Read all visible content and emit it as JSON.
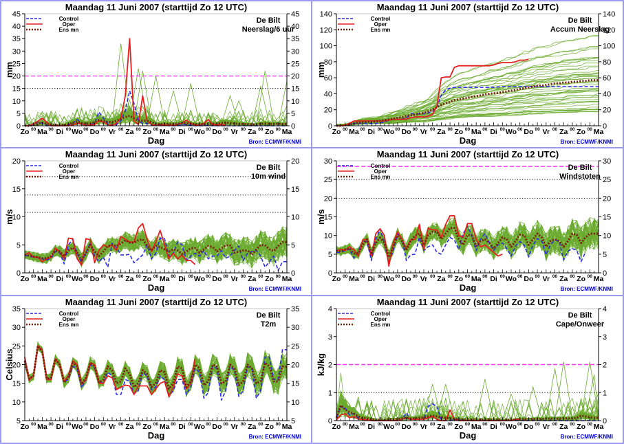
{
  "page": {
    "title": "Maandag   11 Juni      2007  (starttijd  Zo 12 UTC)",
    "location": "De Bilt",
    "source": "Bron: ECMWF/KNMI",
    "xlabel": "Dag",
    "legend": [
      {
        "label": "Control",
        "color": "#2a2ae6",
        "style": "dashed"
      },
      {
        "label": "Oper",
        "color": "#e61e1e",
        "style": "solid"
      },
      {
        "label": "Ens mn",
        "color": "#7a1e0a",
        "style": "dotted"
      }
    ],
    "colors": {
      "members": "#6aaa2e",
      "control": "#2a2ae6",
      "oper": "#e61e1e",
      "ensmean": "#7a1e0a",
      "threshold_magenta": "#ff33ff",
      "threshold_black": "#000000",
      "border": "#9a9af0"
    },
    "day_labels": [
      "Zo",
      "Ma",
      "Di",
      "Wo",
      "Do",
      "Vr",
      "Za",
      "Zo",
      "Ma",
      "Di",
      "Wo",
      "Do",
      "Vr",
      "Za",
      "Zo",
      "Ma"
    ],
    "midday_marker": "00"
  },
  "chart_data": [
    {
      "id": "neerslag",
      "type": "line",
      "title": "Maandag   11 Juni      2007  (starttijd  Zo 12 UTC)",
      "subtitle": "Neerslag/6 uur",
      "location": "De Bilt",
      "ylabel": "mm",
      "xlabel": "Dag",
      "ylim": [
        0,
        45
      ],
      "yticks": [
        0,
        5,
        10,
        15,
        20,
        25,
        30,
        35,
        40,
        45
      ],
      "thresholds": [
        {
          "value": 20,
          "color": "magenta",
          "style": "dashed"
        },
        {
          "value": 15,
          "color": "black",
          "style": "dotted"
        }
      ],
      "x_unit": "6-hourly steps from Zo 12 UTC",
      "member_spread": 0.9,
      "member_count": 50,
      "control": [
        0,
        0,
        0.5,
        1.5,
        1,
        0,
        0,
        0,
        0,
        0,
        0.5,
        1,
        2.5,
        1,
        0,
        0.5,
        1,
        5.5,
        3,
        1,
        0,
        0.5,
        2,
        6,
        14,
        9,
        2,
        1,
        1,
        0.5,
        0,
        0.3,
        0.2,
        0,
        0,
        0,
        0.3,
        0.5,
        0.2,
        0,
        0,
        0,
        0.2,
        0,
        0,
        0,
        0,
        0,
        0,
        0,
        0,
        0,
        0,
        0,
        0,
        0,
        0,
        0,
        0,
        0,
        0
      ],
      "oper": [
        0,
        0,
        0.8,
        1.8,
        3,
        1.5,
        0,
        0,
        0,
        0,
        0,
        0.3,
        1,
        0.8,
        0,
        0.3,
        0.5,
        2,
        1.5,
        0.5,
        0.2,
        1,
        3,
        12,
        35,
        2,
        0.5,
        12,
        2,
        0.5,
        0.2,
        0.5,
        0.3,
        0.2,
        0.2,
        0.5,
        1,
        2.3,
        1,
        0.3,
        0.2,
        1,
        2.5,
        0.5,
        0.3,
        0.5,
        0.3
      ],
      "ens_mean": [
        0,
        0,
        0.3,
        0.8,
        1.2,
        0.8,
        0.4,
        0.3,
        0.3,
        0.4,
        0.6,
        1.2,
        1.8,
        1.2,
        0.8,
        1,
        1.5,
        2.3,
        2,
        1.5,
        1.5,
        2,
        2.8,
        3.5,
        4,
        3,
        2,
        2.1,
        2,
        1.5,
        0.8,
        0.6,
        0.8,
        0.8,
        0.7,
        0.8,
        1,
        1,
        0.8,
        0.6,
        0.6,
        0.6,
        0.8,
        0.8,
        0.8,
        1.2,
        1.3,
        1.1,
        0.9,
        0.8,
        0.7,
        0.6,
        0.5,
        0.6,
        0.8,
        0.9,
        0.7,
        0.8,
        0.8,
        0.7,
        0.7
      ],
      "member_peaks": [
        [
          22,
          33
        ],
        [
          26,
          23
        ],
        [
          27,
          22
        ],
        [
          30,
          20
        ],
        [
          34,
          14
        ],
        [
          38,
          17
        ],
        [
          47,
          12
        ],
        [
          49,
          10
        ],
        [
          54,
          16
        ],
        [
          55,
          22
        ],
        [
          60,
          18
        ],
        [
          60,
          8
        ]
      ]
    },
    {
      "id": "accum",
      "type": "line",
      "title": "Maandag   11 Juni      2007  (starttijd  Zo 12 UTC)",
      "subtitle": "Accum Neerslag",
      "location": "De Bilt",
      "ylabel": "mm",
      "xlabel": "Dag",
      "ylim": [
        0,
        140
      ],
      "yticks": [
        0,
        20,
        40,
        60,
        80,
        100,
        120,
        140
      ],
      "thresholds": [],
      "member_spread": 20,
      "member_count": 50,
      "member_max": 112,
      "member_min": 16,
      "control": [
        0,
        0,
        0.5,
        2,
        3,
        3,
        3,
        3,
        3,
        3,
        3.5,
        4.5,
        7,
        8,
        8,
        8.5,
        9.5,
        15,
        15,
        15,
        15,
        16,
        18,
        24,
        38,
        45,
        47,
        48,
        48,
        48,
        48,
        48,
        48,
        48,
        48,
        48,
        48,
        48.5,
        49,
        49,
        49,
        49,
        49,
        49,
        49,
        49,
        49,
        49,
        49,
        49,
        49,
        49,
        49,
        49,
        49,
        49,
        49,
        49,
        49,
        49,
        49
      ],
      "oper": [
        0,
        0,
        1,
        3,
        6,
        6,
        6,
        6,
        6,
        6,
        6,
        6,
        7,
        8,
        8,
        8,
        8.5,
        10,
        11,
        11,
        11,
        12,
        14,
        25,
        60,
        61,
        61,
        73,
        75,
        75,
        75,
        75,
        75,
        75,
        75,
        75,
        76,
        78,
        79,
        79,
        79,
        80,
        82,
        82,
        83
      ],
      "ens_mean": [
        0,
        0,
        0.5,
        1.5,
        3,
        4,
        4.5,
        5,
        5,
        5.5,
        6,
        7,
        8,
        9,
        10,
        11,
        12,
        13,
        14,
        15,
        16,
        18,
        20,
        23,
        26,
        28,
        30,
        32,
        33,
        34,
        35,
        36,
        37,
        38,
        39,
        40,
        40.5,
        41,
        42,
        43,
        44,
        45,
        46,
        47,
        48,
        49,
        50,
        50,
        51,
        52,
        53,
        53,
        54,
        54,
        55,
        55,
        56,
        56,
        57,
        57,
        57
      ]
    },
    {
      "id": "wind10m",
      "type": "line",
      "title": "Maandag   11 Juni      2007  (starttijd  Zo 12 UTC)",
      "subtitle": "10m wind",
      "location": "De Bilt",
      "ylabel": "m/s",
      "xlabel": "Dag",
      "ylim": [
        0,
        20
      ],
      "yticks": [
        0,
        5,
        10,
        15,
        20
      ],
      "thresholds": [
        {
          "value": 10.8,
          "color": "black",
          "style": "dotted"
        },
        {
          "value": 13.9,
          "color": "black",
          "style": "dotted"
        },
        {
          "value": 17.2,
          "color": "black",
          "style": "dotted"
        }
      ],
      "member_spread": 2.0,
      "member_count": 50,
      "control": [
        3.1,
        3,
        2.8,
        2.7,
        2.5,
        2.3,
        2.6,
        3.8,
        3.6,
        1.6,
        5,
        6,
        3.5,
        1.8,
        3.5,
        5.5,
        3,
        2,
        2.8,
        1,
        5.3,
        4.5,
        3.2,
        3.2,
        3.3,
        1.8,
        2.5,
        3.2,
        5,
        2.5,
        3.5,
        6.2,
        6.1,
        3,
        3.5,
        5.5,
        5,
        2.3,
        3,
        3.5,
        3,
        4,
        2.5,
        3,
        3,
        4,
        2.6,
        3,
        4,
        4.8,
        2.2,
        3.5,
        3.8,
        4,
        3,
        1,
        2,
        3,
        0.4,
        2,
        2
      ],
      "oper": [
        3.2,
        3.6,
        2.8,
        2.8,
        2,
        2.5,
        2.8,
        4.4,
        3.8,
        2.5,
        6.2,
        6.1,
        2.5,
        1.4,
        6.1,
        5.9,
        1.8,
        4,
        5,
        4.6,
        5,
        4,
        6.5,
        6,
        5.5,
        5.5,
        8,
        8.8,
        6,
        3.8,
        5.5,
        7.6,
        5,
        2.5,
        3.5,
        2.5,
        3.2,
        2.2,
        2.2,
        1.5
      ],
      "ens_mean": [
        3.2,
        3.1,
        2.9,
        2.8,
        2.6,
        2.6,
        3,
        4,
        3.8,
        3,
        4,
        4.5,
        3.6,
        2.3,
        3.5,
        5,
        3.8,
        3,
        3.8,
        4.8,
        5,
        4.8,
        5.2,
        5.8,
        5.4,
        5.4,
        5.8,
        6,
        4.8,
        4,
        4.8,
        4.6,
        4.2,
        3.8,
        4.2,
        4,
        3.4,
        3.8,
        4.4,
        4.4,
        3.6,
        4.2,
        4.8,
        4.6,
        3.8,
        4.4,
        4.9,
        4.9,
        3.6,
        3.8,
        4,
        4,
        3.2,
        4.2,
        5,
        4.9,
        4.2,
        3.9,
        4.8,
        5.5,
        5.5
      ]
    },
    {
      "id": "windstoten",
      "type": "line",
      "title": "Maandag   11 Juni      2007  (starttijd  Zo 12 UTC)",
      "subtitle": "Windstoten",
      "location": "De Bilt",
      "ylabel": "m/s",
      "xlabel": "Dag",
      "ylim": [
        0,
        30
      ],
      "yticks": [
        0,
        5,
        10,
        15,
        20,
        25,
        30
      ],
      "thresholds": [
        {
          "value": 28.5,
          "color": "magenta",
          "style": "dashed"
        },
        {
          "value": 25,
          "color": "black",
          "style": "dotted"
        },
        {
          "value": 20,
          "color": "black",
          "style": "dotted"
        }
      ],
      "member_spread": 3.2,
      "member_count": 50,
      "control": [
        5.5,
        5.4,
        6,
        6.4,
        4,
        5.8,
        8.5,
        8.4,
        3.3,
        9,
        11.8,
        8,
        2.6,
        6,
        10.5,
        9,
        3.3,
        4.8,
        5,
        9.5,
        6,
        7,
        7.5,
        5.5,
        5,
        7.5,
        9.5,
        8.8,
        6.2,
        10.5,
        12.5,
        10,
        6,
        9,
        10.5,
        8,
        6,
        7.5,
        8,
        6.5,
        4.5,
        7.2,
        8.4,
        7.4,
        4.3,
        7.5,
        9.2,
        8.5,
        4.8,
        7.6,
        8.8,
        8.5,
        3.5,
        5.8,
        6.5,
        6,
        3,
        5.5
      ],
      "oper": [
        5.8,
        6.3,
        6,
        7,
        6.2,
        4.5,
        8.8,
        9,
        4.5,
        10.5,
        11.8,
        10,
        1.8,
        8,
        11,
        9,
        6.5,
        8.8,
        9,
        13,
        6.3,
        12,
        11.5,
        11.5,
        9.5,
        13,
        15.3,
        15.3,
        10,
        9.5,
        13.2,
        13.2,
        9,
        7,
        7.5,
        6.5,
        5.5,
        4.5,
        5
      ],
      "ens_mean": [
        6,
        5.7,
        6.3,
        6.5,
        5.2,
        5.2,
        7.5,
        9,
        5,
        8,
        9.4,
        8,
        4.2,
        7,
        10,
        8.5,
        6,
        8.5,
        10,
        10.5,
        7.5,
        10,
        11,
        11,
        9,
        10.5,
        12,
        12,
        9,
        7.5,
        10.2,
        10,
        7.2,
        8.5,
        9,
        8,
        6.5,
        8,
        9.5,
        9,
        7,
        8.5,
        10.2,
        10,
        7.5,
        9,
        10.5,
        9.5,
        7,
        8.5,
        9,
        8.5,
        7,
        8.5,
        10.5,
        10.2,
        8,
        9.5,
        10.5,
        10.5,
        10.5
      ]
    },
    {
      "id": "t2m",
      "type": "line",
      "title": "Maandag   11 Juni      2007  (starttijd  Zo 12 UTC)",
      "subtitle": "T2m",
      "location": "De Bilt",
      "ylabel": "Celsius",
      "xlabel": "Dag",
      "ylim": [
        5,
        35
      ],
      "yticks": [
        5,
        10,
        15,
        20,
        25,
        30,
        35
      ],
      "thresholds": [],
      "member_spread": 2.6,
      "member_count": 50,
      "control": [
        21,
        16,
        17,
        24.5,
        24,
        16.5,
        16,
        21.5,
        20,
        15.5,
        16,
        19.5,
        19,
        13.8,
        16,
        20,
        19,
        15.5,
        15,
        18,
        17,
        12,
        12,
        16,
        15.5,
        12.2,
        13,
        18,
        17,
        13.2,
        14,
        17,
        16,
        11.8,
        13,
        16,
        16,
        12,
        14,
        19,
        18,
        11,
        12.5,
        19.5,
        19,
        10.5,
        13,
        19.5,
        18.5,
        11.5,
        13,
        19.5,
        19,
        11,
        13,
        22,
        22,
        16,
        16,
        24,
        24
      ],
      "oper": [
        22,
        15.8,
        17,
        25,
        24,
        16,
        16,
        21.5,
        20,
        15.5,
        17,
        21,
        20,
        14.8,
        16,
        20.5,
        20,
        15,
        15,
        17,
        16.5,
        13.3,
        14,
        14.5,
        14.3,
        12,
        14.3,
        14.3,
        14.3,
        12,
        13.5,
        15,
        15.5,
        11.4,
        14,
        17.5,
        17,
        13.5,
        15,
        21.5
      ],
      "ens_mean": [
        21,
        16.2,
        17,
        25,
        23.5,
        16.2,
        16.5,
        21.5,
        20,
        15.2,
        16.5,
        20.5,
        19.5,
        14.8,
        16.5,
        20.5,
        19.5,
        15.2,
        16,
        19.5,
        18.5,
        15,
        15.5,
        19,
        17.5,
        14,
        15,
        18.5,
        17.5,
        14,
        15,
        18.5,
        18,
        13.5,
        15,
        19.5,
        19,
        14,
        15.5,
        20,
        19,
        14.5,
        15.5,
        20,
        19.5,
        15,
        15.5,
        20,
        19,
        14.5,
        15.5,
        20,
        19,
        15,
        15.5,
        20.5,
        19.5,
        15.5,
        15.5,
        19.5,
        19.5
      ]
    },
    {
      "id": "cape",
      "type": "line",
      "title": "Maandag   11 Juni      2007  (starttijd  Zo 12 UTC)",
      "subtitle": "Cape/Onweer",
      "location": "De Bilt",
      "ylabel": "kJ/kg",
      "xlabel": "Dag",
      "ylim": [
        0,
        4
      ],
      "yticks": [
        0,
        1,
        2,
        3,
        4
      ],
      "thresholds": [
        {
          "value": 2,
          "color": "magenta",
          "style": "dashed"
        },
        {
          "value": 1,
          "color": "black",
          "style": "dotted"
        }
      ],
      "member_spread": 0.12,
      "member_count": 50,
      "control": [
        0.1,
        0.5,
        0.45,
        0.2,
        0.25,
        0.1,
        0.05,
        0.02,
        0,
        0,
        0,
        0,
        0.02,
        0,
        0,
        0.05,
        0.28,
        0.05,
        0.05,
        0.05,
        0.05,
        0.5,
        0.6,
        0.5,
        0.05,
        0,
        0,
        0.05,
        0.05,
        0,
        0,
        0,
        0,
        0,
        0,
        0,
        0,
        0,
        0,
        0,
        0,
        0,
        0,
        0,
        0,
        0,
        0,
        0,
        0,
        0,
        0,
        0,
        0,
        0,
        0,
        0,
        0,
        0,
        0,
        0,
        0
      ],
      "oper": [
        0.02,
        0.2,
        0.25,
        0.1,
        0.15,
        0.05,
        0.05,
        0.02,
        0,
        0,
        0,
        0,
        0,
        0,
        0,
        0.05,
        0.1,
        0.05,
        0.05,
        0.05,
        0.05,
        0.1,
        0.15,
        0.05,
        0,
        0,
        0.38,
        0.05,
        0,
        0,
        0,
        0,
        0,
        0,
        0,
        0,
        0,
        0,
        0,
        0,
        0,
        0.05,
        0.05
      ],
      "ens_mean": [
        0.1,
        0.55,
        0.4,
        0.3,
        0.25,
        0.15,
        0.1,
        0.08,
        0.05,
        0.03,
        0.03,
        0.03,
        0.05,
        0.05,
        0.05,
        0.08,
        0.1,
        0.08,
        0.08,
        0.1,
        0.12,
        0.15,
        0.18,
        0.15,
        0.12,
        0.1,
        0.08,
        0.06,
        0.05,
        0.04,
        0.04,
        0.04,
        0.04,
        0.04,
        0.04,
        0.04,
        0.04,
        0.04,
        0.03,
        0.03,
        0.03,
        0.04,
        0.05,
        0.05,
        0.05,
        0.06,
        0.06,
        0.06,
        0.07,
        0.07,
        0.07,
        0.07,
        0.08,
        0.08,
        0.08,
        0.1,
        0.18,
        0.15,
        0.12,
        0.1,
        0.1
      ],
      "member_peaks": [
        [
          22,
          1.3
        ],
        [
          25,
          1.3
        ],
        [
          34,
          1.48
        ],
        [
          40,
          0.95
        ],
        [
          45,
          1.2
        ],
        [
          50,
          1.85
        ],
        [
          52,
          2.1
        ],
        [
          58,
          2.1
        ],
        [
          60,
          1.0
        ],
        [
          59,
          1.65
        ]
      ]
    }
  ]
}
